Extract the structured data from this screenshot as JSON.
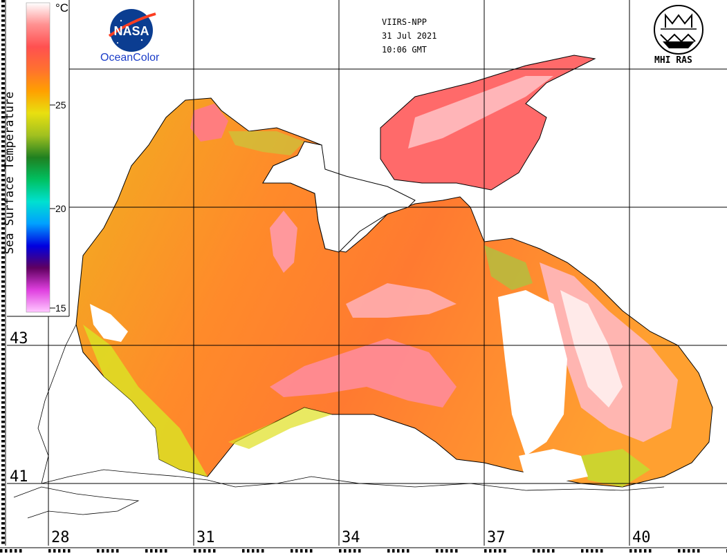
{
  "header": {
    "satellite": "VIIRS-NPP",
    "date": "31 Jul 2021",
    "time": "10:06 GMT"
  },
  "logos": {
    "nasa_text": "NASA",
    "oceancolor_text": "OceanColor",
    "mhi_text": "MHI RAS"
  },
  "legend": {
    "title": "Sea Surface Temperature",
    "unit": "°C",
    "ticks": [
      "25",
      "20",
      "15"
    ],
    "range": [
      14,
      30
    ],
    "colors": [
      "#ffc8ff",
      "#e040e0",
      "#600060",
      "#0000e0",
      "#00a0ff",
      "#00e0d0",
      "#00c060",
      "#208020",
      "#a0c020",
      "#e8e010",
      "#ffa000",
      "#ff7030",
      "#ff5050",
      "#ff9090",
      "#ffffff"
    ]
  },
  "axes": {
    "lat_labels": [
      "43",
      "41"
    ],
    "lon_labels": [
      "28",
      "31",
      "34",
      "37",
      "40"
    ]
  },
  "colors": {
    "sst_low": "#d8e020",
    "sst_mid": "#ff9820",
    "sst_high": "#ff5a5a",
    "sst_max": "#fff0f0",
    "land": "#ffffff",
    "coast": "#000000"
  }
}
